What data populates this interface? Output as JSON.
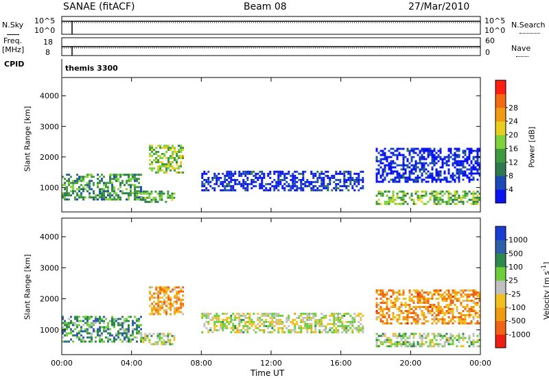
{
  "header": {
    "station": "SANAE (fitACF)",
    "beam": "Beam 08",
    "date": "27/Mar/2010"
  },
  "strip_labels": {
    "nsky": "N.Sky",
    "nsky_ticks": [
      "10^5",
      "10^0"
    ],
    "freq": "Freq.",
    "freq_unit": "[MHz]",
    "freq_ticks": [
      "18",
      "8"
    ],
    "cpid": "CPID",
    "nsearch": "N.Search",
    "nsearch_ticks": [
      "10^5",
      "10^0"
    ],
    "nave": "Nave",
    "nave_ticks": [
      "60",
      "0"
    ],
    "cpid_value": "themis 3300"
  },
  "colors": {
    "power_scale": [
      "#0a14f0",
      "#1a49b8",
      "#2e7a4f",
      "#3e9a3e",
      "#7ed23a",
      "#e8cf1e",
      "#f29a12",
      "#f26a12",
      "#ff1e12"
    ],
    "velocity_scale": [
      "#1a3ecf",
      "#2e60a8",
      "#2e8a4a",
      "#6ccf3a",
      "#c0c0c0",
      "#f2c01e",
      "#f29a12",
      "#f06414",
      "#ee1e12"
    ]
  },
  "chart_data": [
    {
      "type": "heatmap",
      "panel": "power",
      "xlabel": "",
      "ylabel": "Slant Range [km]",
      "x_ticks": [
        "00:00",
        "04:00",
        "08:00",
        "12:00",
        "16:00",
        "20:00",
        "00:00"
      ],
      "y_ticks": [
        1000,
        2000,
        3000,
        4000
      ],
      "ylim": [
        200,
        4600
      ],
      "colorbar_label": "Power [dB]",
      "colorbar_ticks": [
        4,
        8,
        12,
        16,
        20,
        24,
        28
      ],
      "regions": [
        {
          "t0": 0.0,
          "t1": 4.5,
          "r0": 600,
          "r1": 1450,
          "level": 0.35
        },
        {
          "t0": 4.5,
          "t1": 6.4,
          "r0": 550,
          "r1": 900,
          "level": 0.4
        },
        {
          "t0": 5.0,
          "t1": 7.0,
          "r0": 1500,
          "r1": 2400,
          "level": 0.5
        },
        {
          "t0": 8.0,
          "t1": 17.3,
          "r0": 900,
          "r1": 1550,
          "level": 0.08
        },
        {
          "t0": 18.0,
          "t1": 24.0,
          "r0": 450,
          "r1": 900,
          "level": 0.45
        },
        {
          "t0": 18.0,
          "t1": 24.0,
          "r0": 1200,
          "r1": 2300,
          "level": 0.06
        }
      ]
    },
    {
      "type": "heatmap",
      "panel": "velocity",
      "xlabel": "Time UT",
      "ylabel": "Slant Range [km]",
      "x_ticks": [
        "00:00",
        "04:00",
        "08:00",
        "12:00",
        "16:00",
        "20:00",
        "00:00"
      ],
      "y_ticks": [
        1000,
        2000,
        3000,
        4000
      ],
      "ylim": [
        200,
        4600
      ],
      "colorbar_label": "Velocity [m s^-1]",
      "colorbar_ticks": [
        1000,
        500,
        100,
        25,
        -25,
        -100,
        -500,
        -1000
      ],
      "regions": [
        {
          "t0": 0.0,
          "t1": 4.5,
          "r0": 600,
          "r1": 1450,
          "level": 0.3
        },
        {
          "t0": 4.5,
          "t1": 6.4,
          "r0": 550,
          "r1": 900,
          "level": 0.45
        },
        {
          "t0": 5.0,
          "t1": 7.0,
          "r0": 1500,
          "r1": 2400,
          "level": 0.7
        },
        {
          "t0": 8.0,
          "t1": 17.3,
          "r0": 900,
          "r1": 1550,
          "level": 0.5
        },
        {
          "t0": 18.0,
          "t1": 24.0,
          "r0": 450,
          "r1": 900,
          "level": 0.45
        },
        {
          "t0": 18.0,
          "t1": 24.0,
          "r0": 1200,
          "r1": 2300,
          "level": 0.72
        }
      ]
    }
  ]
}
